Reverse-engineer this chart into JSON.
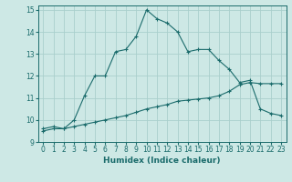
{
  "xlabel": "Humidex (Indice chaleur)",
  "bg_color": "#cde8e5",
  "grid_color": "#aacfcc",
  "line_color": "#1a6b6b",
  "xlim": [
    -0.5,
    23.5
  ],
  "ylim": [
    9,
    15.2
  ],
  "yticks": [
    9,
    10,
    11,
    12,
    13,
    14,
    15
  ],
  "xticks": [
    0,
    1,
    2,
    3,
    4,
    5,
    6,
    7,
    8,
    9,
    10,
    11,
    12,
    13,
    14,
    15,
    16,
    17,
    18,
    19,
    20,
    21,
    22,
    23
  ],
  "line1_x": [
    0,
    1,
    2,
    3,
    4,
    5,
    6,
    7,
    8,
    9,
    10,
    11,
    12,
    13,
    14,
    15,
    16,
    17,
    18,
    19,
    20,
    21,
    22,
    23
  ],
  "line1_y": [
    9.6,
    9.7,
    9.6,
    10.0,
    11.1,
    12.0,
    12.0,
    13.1,
    13.2,
    13.8,
    15.0,
    14.6,
    14.4,
    14.0,
    13.1,
    13.2,
    13.2,
    12.7,
    12.3,
    11.7,
    11.8,
    10.5,
    10.3,
    10.2
  ],
  "line2_x": [
    0,
    1,
    2,
    3,
    4,
    5,
    6,
    7,
    8,
    9,
    10,
    11,
    12,
    13,
    14,
    15,
    16,
    17,
    18,
    19,
    20,
    21,
    22,
    23
  ],
  "line2_y": [
    9.5,
    9.6,
    9.6,
    9.7,
    9.8,
    9.9,
    10.0,
    10.1,
    10.2,
    10.35,
    10.5,
    10.6,
    10.7,
    10.85,
    10.9,
    10.95,
    11.0,
    11.1,
    11.3,
    11.6,
    11.7,
    11.65,
    11.65,
    11.65
  ]
}
